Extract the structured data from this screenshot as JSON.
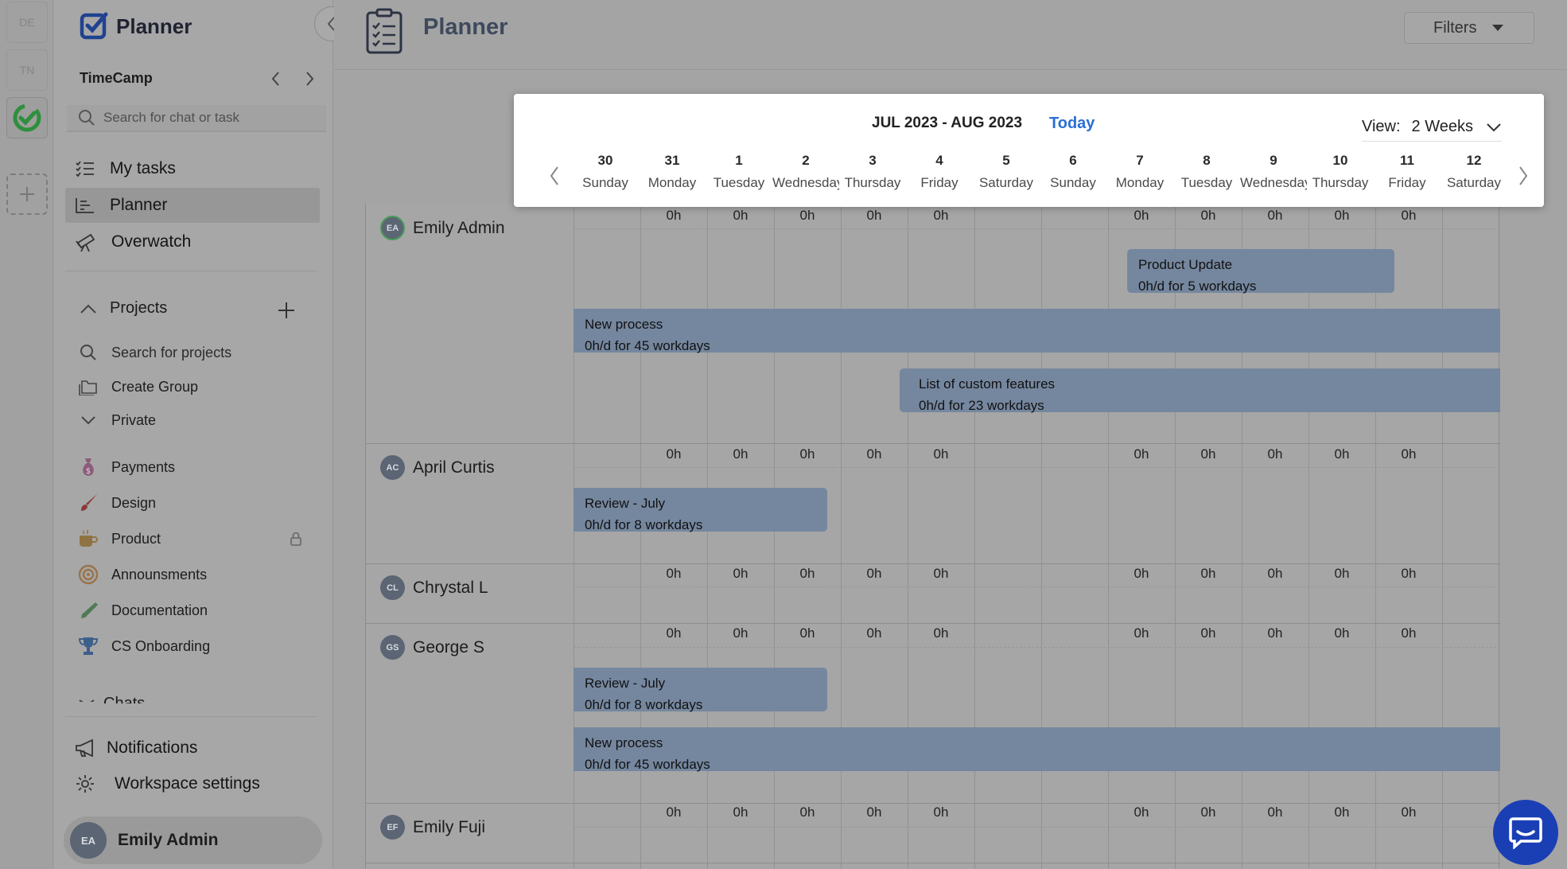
{
  "rail": {
    "workspaces": [
      "DE",
      "TN"
    ]
  },
  "sidebar": {
    "app_title": "Planner",
    "workspace_name": "TimeCamp",
    "search_placeholder": "Search for chat or task",
    "nav": [
      {
        "label": "My tasks"
      },
      {
        "label": "Planner"
      },
      {
        "label": "Overwatch"
      }
    ],
    "projects_title": "Projects",
    "project_search": "Search for projects",
    "create_group": "Create Group",
    "private": "Private",
    "projects": [
      {
        "label": "Payments",
        "icon": "money-bag-icon"
      },
      {
        "label": "Design",
        "icon": "paintbrush-icon"
      },
      {
        "label": "Product",
        "icon": "coffee-icon"
      },
      {
        "label": "Announsments",
        "icon": "target-icon"
      },
      {
        "label": "Documentation",
        "icon": "pen-icon"
      },
      {
        "label": "CS Onboarding",
        "icon": "trophy-icon"
      }
    ],
    "chats_title": "Chats",
    "notifications": "Notifications",
    "workspace_settings": "Workspace settings",
    "user": {
      "initials": "EA",
      "name": "Emily Admin"
    }
  },
  "header": {
    "title": "Planner",
    "filters": "Filters"
  },
  "calendar": {
    "range": "JUL 2023 - AUG 2023",
    "today": "Today",
    "view_label": "View:",
    "view_value": "2 Weeks",
    "days": [
      {
        "num": "30",
        "name": "Sunday"
      },
      {
        "num": "31",
        "name": "Monday"
      },
      {
        "num": "1",
        "name": "Tuesday"
      },
      {
        "num": "2",
        "name": "Wednesday"
      },
      {
        "num": "3",
        "name": "Thursday"
      },
      {
        "num": "4",
        "name": "Friday"
      },
      {
        "num": "5",
        "name": "Saturday"
      },
      {
        "num": "6",
        "name": "Sunday"
      },
      {
        "num": "7",
        "name": "Monday"
      },
      {
        "num": "8",
        "name": "Tuesday"
      },
      {
        "num": "9",
        "name": "Wednesday"
      },
      {
        "num": "10",
        "name": "Thursday"
      },
      {
        "num": "11",
        "name": "Friday"
      },
      {
        "num": "12",
        "name": "Saturday"
      }
    ]
  },
  "hours_label": "0h",
  "users": [
    {
      "initials": "EA",
      "name": "Emily Admin",
      "tasks": [
        {
          "title": "Product Update",
          "detail": "0h/d for 5 workdays"
        },
        {
          "title": "New process",
          "detail": "0h/d for 45 workdays"
        },
        {
          "title": "List of custom features",
          "detail": "0h/d for 23 workdays"
        }
      ]
    },
    {
      "initials": "AC",
      "name": "April Curtis",
      "tasks": [
        {
          "title": "Review - July",
          "detail": "0h/d for 8 workdays"
        }
      ]
    },
    {
      "initials": "CL",
      "name": "Chrystal L",
      "tasks": []
    },
    {
      "initials": "GS",
      "name": "George S",
      "tasks": [
        {
          "title": "Review - July",
          "detail": "0h/d for 8 workdays"
        },
        {
          "title": "New process",
          "detail": "0h/d for 45 workdays"
        }
      ]
    },
    {
      "initials": "EF",
      "name": "Emily Fuji",
      "tasks": []
    }
  ]
}
